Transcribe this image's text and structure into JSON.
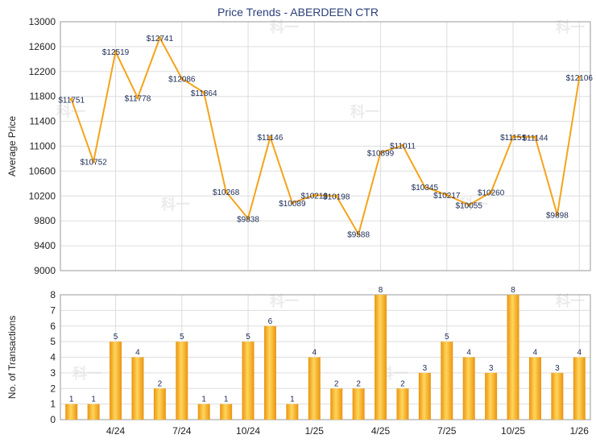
{
  "chart_data": [
    {
      "type": "line",
      "title": "Price Trends - ABERDEEN CTR",
      "ylabel": "Average Price",
      "ylim": [
        9000,
        13000
      ],
      "yticks": [
        9000,
        9400,
        9800,
        10200,
        10600,
        11000,
        11400,
        11800,
        12200,
        12600,
        13000
      ],
      "grid": true,
      "series": [
        {
          "values": [
            11751,
            10752,
            12519,
            11778,
            12741,
            12086,
            11864,
            10268,
            9838,
            11146,
            10089,
            10213,
            10198,
            9588,
            10899,
            11011,
            10345,
            10217,
            10055,
            10260,
            11151,
            11144,
            9898,
            12106
          ],
          "labels": [
            "$11751",
            "$10752",
            "$12519",
            "$11778",
            "$12741",
            "$12086",
            "$11864",
            "$10268",
            "$9838",
            "$11146",
            "$10089",
            "$10213",
            "$10198",
            "$9588",
            "$10899",
            "$11011",
            "$10345",
            "$10217",
            "$10055",
            "$10260",
            "$11151",
            "$11144",
            "$9898",
            "$12106"
          ],
          "color": "#f5a31a"
        }
      ]
    },
    {
      "type": "bar",
      "ylabel": "No. of Transactions",
      "ylim": [
        0,
        8
      ],
      "yticks": [
        0,
        1,
        2,
        3,
        4,
        5,
        6,
        7,
        8
      ],
      "grid": true,
      "xticks": [
        {
          "index": 2,
          "label": "4/24"
        },
        {
          "index": 5,
          "label": "7/24"
        },
        {
          "index": 8,
          "label": "10/24"
        },
        {
          "index": 11,
          "label": "1/25"
        },
        {
          "index": 14,
          "label": "4/25"
        },
        {
          "index": 17,
          "label": "7/25"
        },
        {
          "index": 20,
          "label": "10/25"
        },
        {
          "index": 23,
          "label": "1/26"
        }
      ],
      "series": [
        {
          "values": [
            1,
            1,
            5,
            4,
            2,
            5,
            1,
            1,
            5,
            6,
            1,
            4,
            2,
            2,
            8,
            2,
            3,
            5,
            4,
            3,
            8,
            4,
            3,
            4
          ],
          "color": "#f5a31a"
        }
      ]
    }
  ],
  "colors": {
    "grid": "#dddddd",
    "frame": "#9a9a9a",
    "bar_light": "#ffd65a",
    "bar_dark": "#eb9310",
    "line": "#f5a31a",
    "title": "#2b3f7a",
    "watermark": "#ebebeb"
  },
  "watermark_text": "科一"
}
